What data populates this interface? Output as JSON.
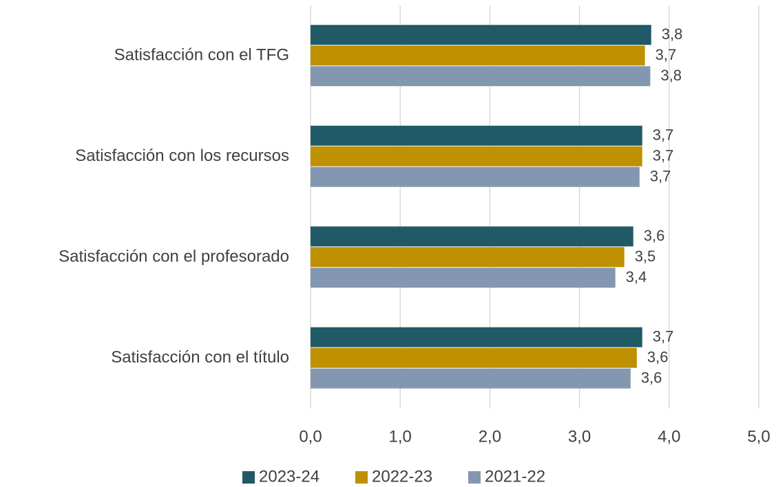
{
  "chart_data": {
    "type": "hbar",
    "categories": [
      "Satisfacción con el TFG",
      "Satisfacción con los recursos",
      "Satisfacción con el profesorado",
      "Satisfacción con el título"
    ],
    "series": [
      {
        "name": "2023-24",
        "color": "#1f5a66",
        "values": [
          3.8,
          3.7,
          3.6,
          3.7
        ],
        "value_labels": [
          "3,8",
          "3,7",
          "3,6",
          "3,7"
        ]
      },
      {
        "name": "2022-23",
        "color": "#bf9000",
        "values": [
          3.73,
          3.7,
          3.5,
          3.64
        ],
        "value_labels": [
          "3,7",
          "3,7",
          "3,5",
          "3,6"
        ]
      },
      {
        "name": "2021-22",
        "color": "#8497b0",
        "values": [
          3.79,
          3.67,
          3.4,
          3.57
        ],
        "value_labels": [
          "3,8",
          "3,7",
          "3,4",
          "3,6"
        ]
      }
    ],
    "xlim": [
      0,
      5
    ],
    "xticks": [
      {
        "value": 0,
        "label": "0,0"
      },
      {
        "value": 1,
        "label": "1,0"
      },
      {
        "value": 2,
        "label": "2,0"
      },
      {
        "value": 3,
        "label": "3,0"
      },
      {
        "value": 4,
        "label": "4,0"
      },
      {
        "value": 5,
        "label": "5,0"
      }
    ],
    "grid": true,
    "legend": "bottom"
  }
}
